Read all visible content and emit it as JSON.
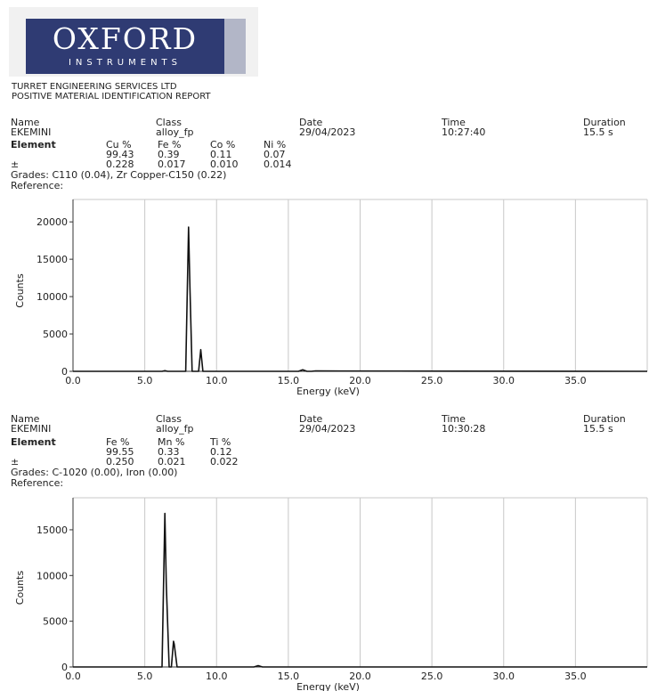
{
  "logo": {
    "main": "OXFORD",
    "sub": "INSTRUMENTS"
  },
  "company": {
    "name": "TURRET ENGINEERING SERVICES LTD",
    "report_title": "POSITIVE MATERIAL IDENTIFICATION REPORT"
  },
  "header_labels": {
    "name": "Name",
    "class": "Class",
    "date": "Date",
    "time": "Time",
    "duration": "Duration",
    "element": "Element",
    "plusminus": "±",
    "reference": "Reference:"
  },
  "samples": [
    {
      "name": "EKEMINI",
      "class": "alloy_fp",
      "date": "29/04/2023",
      "time": "10:27:40",
      "duration": "15.5 s",
      "elements": [
        {
          "label": "Cu %",
          "value": "99.43",
          "error": "0.228"
        },
        {
          "label": "Fe %",
          "value": "0.39",
          "error": "0.017"
        },
        {
          "label": "Co %",
          "value": "0.11",
          "error": "0.010"
        },
        {
          "label": "Ni %",
          "value": "0.07",
          "error": "0.014"
        }
      ],
      "grades": "Grades: C110 (0.04), Zr Copper-C150 (0.22)"
    },
    {
      "name": "EKEMINI",
      "class": "alloy_fp",
      "date": "29/04/2023",
      "time": "10:30:28",
      "duration": "15.5 s",
      "elements": [
        {
          "label": "Fe %",
          "value": "99.55",
          "error": "0.250"
        },
        {
          "label": "Mn %",
          "value": "0.33",
          "error": "0.021"
        },
        {
          "label": "Ti %",
          "value": "0.12",
          "error": "0.022"
        }
      ],
      "grades": "Grades: C-1020 (0.00), Iron (0.00)"
    }
  ],
  "chart_data": [
    {
      "type": "line",
      "xlabel": "Energy (keV)",
      "ylabel": "Counts",
      "xlim": [
        0,
        40
      ],
      "ylim": [
        0,
        23000
      ],
      "x_ticks": [
        "0.0",
        "5.0",
        "10.0",
        "15.0",
        "20.0",
        "25.0",
        "30.0",
        "35.0"
      ],
      "y_ticks": [
        "0",
        "5000",
        "10000",
        "15000",
        "20000"
      ],
      "grid": true,
      "series": [
        {
          "x": [
            0,
            6.2,
            6.4,
            6.6,
            7.6,
            7.85,
            8.05,
            8.15,
            8.3,
            8.55,
            8.75,
            8.9,
            9.05,
            9.3,
            15.7,
            16.0,
            16.3,
            16.6,
            16.9,
            40
          ],
          "y": [
            0,
            0,
            80,
            0,
            0,
            0,
            19300,
            11000,
            0,
            0,
            0,
            2900,
            0,
            0,
            0,
            200,
            0,
            0,
            50,
            0
          ]
        }
      ]
    },
    {
      "type": "line",
      "xlabel": "Energy (keV)",
      "ylabel": "Counts",
      "xlim": [
        0,
        40
      ],
      "ylim": [
        0,
        18500
      ],
      "x_ticks": [
        "0.0",
        "5.0",
        "10.0",
        "15.0",
        "20.0",
        "25.0",
        "30.0",
        "35.0"
      ],
      "y_ticks": [
        "0",
        "5000",
        "10000",
        "15000"
      ],
      "grid": true,
      "series": [
        {
          "x": [
            0,
            5.9,
            6.2,
            6.4,
            6.5,
            6.7,
            6.85,
            7.0,
            7.05,
            7.25,
            7.5,
            12.6,
            12.9,
            13.2,
            40
          ],
          "y": [
            0,
            0,
            0,
            16800,
            9000,
            0,
            0,
            2800,
            2500,
            0,
            0,
            0,
            150,
            0,
            0
          ]
        }
      ]
    }
  ]
}
